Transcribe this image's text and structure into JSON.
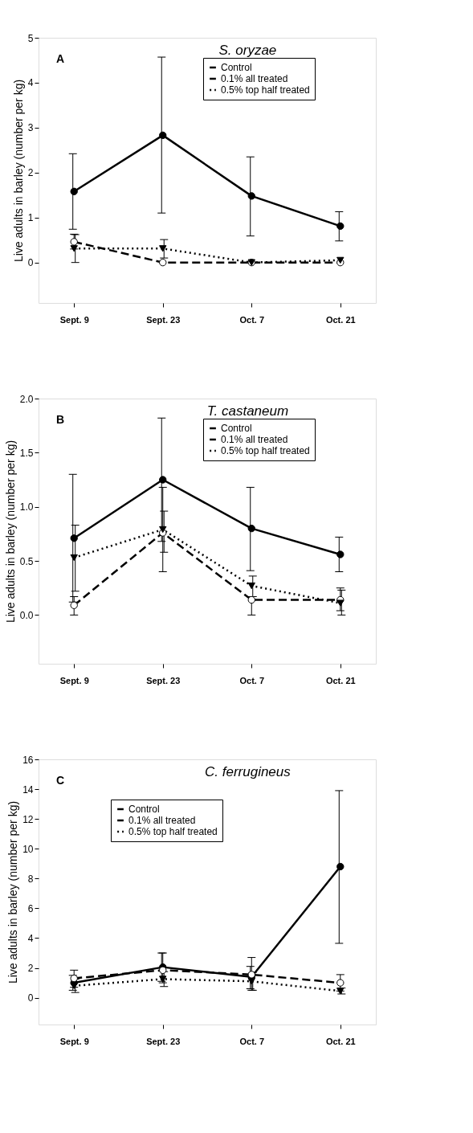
{
  "chart_data": [
    {
      "type": "line",
      "title": "S. oryzae",
      "annotations": [
        "A"
      ],
      "ylabel": "Live adults in barley (number per kg)",
      "categories": [
        "Sept. 9",
        "Sept. 23",
        "Oct. 7",
        "Oct. 21"
      ],
      "ylim": [
        -0.9,
        5
      ],
      "yticks": [
        0,
        1,
        2,
        3,
        4,
        5
      ],
      "grid": false,
      "legend": "top right",
      "series": [
        {
          "name": "Control",
          "color": "#000000",
          "marker": "circle",
          "line_style": "solid",
          "values": [
            1.58,
            2.83,
            1.48,
            0.81
          ],
          "errors": [
            [
              0.74,
              2.42
            ],
            [
              1.1,
              4.57
            ],
            [
              0.59,
              2.35
            ],
            [
              0.48,
              1.13
            ]
          ]
        },
        {
          "name": "0.1% all treated",
          "color": "#000000",
          "marker": "open circle",
          "line_style": "dashed",
          "values": [
            0.46,
            0,
            0,
            0
          ],
          "errors": [
            [
              0.3,
              0.63
            ],
            null,
            null,
            null
          ]
        },
        {
          "name": "0.5% top half treated",
          "color": "#000000",
          "marker": "triangle",
          "line_style": "dotted",
          "values": [
            0.31,
            0.31,
            0,
            0.05
          ],
          "errors": [
            [
              0,
              0.62
            ],
            [
              0.1,
              0.51
            ],
            null,
            null
          ]
        }
      ]
    },
    {
      "type": "line",
      "title": "T. castaneum",
      "annotations": [
        "B"
      ],
      "ylabel": "Live adults in barley (number per kg)",
      "categories": [
        "Sept. 9",
        "Sept. 23",
        "Oct. 7",
        "Oct. 21"
      ],
      "ylim": [
        -0.45,
        2.0
      ],
      "yticks": [
        {
          "value": 0,
          "label": "0.0"
        },
        0.5,
        {
          "value": 1,
          "label": "1.0"
        },
        1.5,
        {
          "value": 2,
          "label": "2.0"
        }
      ],
      "grid": false,
      "legend": "top right",
      "series": [
        {
          "name": "Control",
          "color": "#000000",
          "marker": "circle",
          "line_style": "solid",
          "values": [
            0.71,
            1.25,
            0.8,
            0.56
          ],
          "errors": [
            [
              0.12,
              1.3
            ],
            [
              0.68,
              1.82
            ],
            [
              0.41,
              1.18
            ],
            [
              0.4,
              0.72
            ]
          ]
        },
        {
          "name": "0.1% all treated",
          "color": "#000000",
          "marker": "open circle",
          "line_style": "dashed",
          "values": [
            0.09,
            0.76,
            0.14,
            0.14
          ],
          "errors": [
            [
              0,
              0.17
            ],
            [
              0.4,
              1.18
            ],
            [
              0,
              0.17
            ],
            [
              0.04,
              0.25
            ]
          ]
        },
        {
          "name": "0.5% top half treated",
          "color": "#000000",
          "marker": "triangle",
          "line_style": "dotted",
          "values": [
            0.53,
            0.79,
            0.27,
            0.11
          ],
          "errors": [
            [
              0.22,
              0.83
            ],
            [
              0.58,
              0.96
            ],
            [
              0.17,
              0.36
            ],
            [
              0,
              0.23
            ]
          ]
        }
      ]
    },
    {
      "type": "line",
      "title": "C. ferrugineus",
      "annotations": [
        "C"
      ],
      "ylabel": "Live adults in barley (number per kg)",
      "categories": [
        "Sept. 9",
        "Sept. 23",
        "Oct. 7",
        "Oct. 21"
      ],
      "ylim": [
        -1.8,
        16
      ],
      "yticks": [
        0,
        2,
        4,
        6,
        8,
        10,
        12,
        14,
        16
      ],
      "grid": false,
      "legend": "top",
      "series": [
        {
          "name": "Control",
          "color": "#000000",
          "marker": "circle",
          "line_style": "solid",
          "values": [
            1.0,
            2.05,
            1.4,
            8.8
          ],
          "errors": [
            [
              0.5,
              1.5
            ],
            [
              1.1,
              3.0
            ],
            [
              0.6,
              2.1
            ],
            [
              3.65,
              13.9
            ]
          ]
        },
        {
          "name": "0.1% all treated",
          "color": "#000000",
          "marker": "open circle",
          "line_style": "dashed",
          "values": [
            1.3,
            1.85,
            1.55,
            1.0
          ],
          "errors": [
            [
              0.7,
              1.85
            ],
            [
              1.0,
              3.0
            ],
            [
              0.5,
              2.7
            ],
            [
              0.45,
              1.55
            ]
          ]
        },
        {
          "name": "0.5% top half treated",
          "color": "#000000",
          "marker": "triangle",
          "line_style": "dotted",
          "values": [
            0.8,
            1.25,
            1.1,
            0.45
          ],
          "errors": [
            [
              0.35,
              1.25
            ],
            [
              0.75,
              1.75
            ],
            [
              0.5,
              1.7
            ],
            [
              0.25,
              0.65
            ]
          ]
        }
      ]
    }
  ]
}
